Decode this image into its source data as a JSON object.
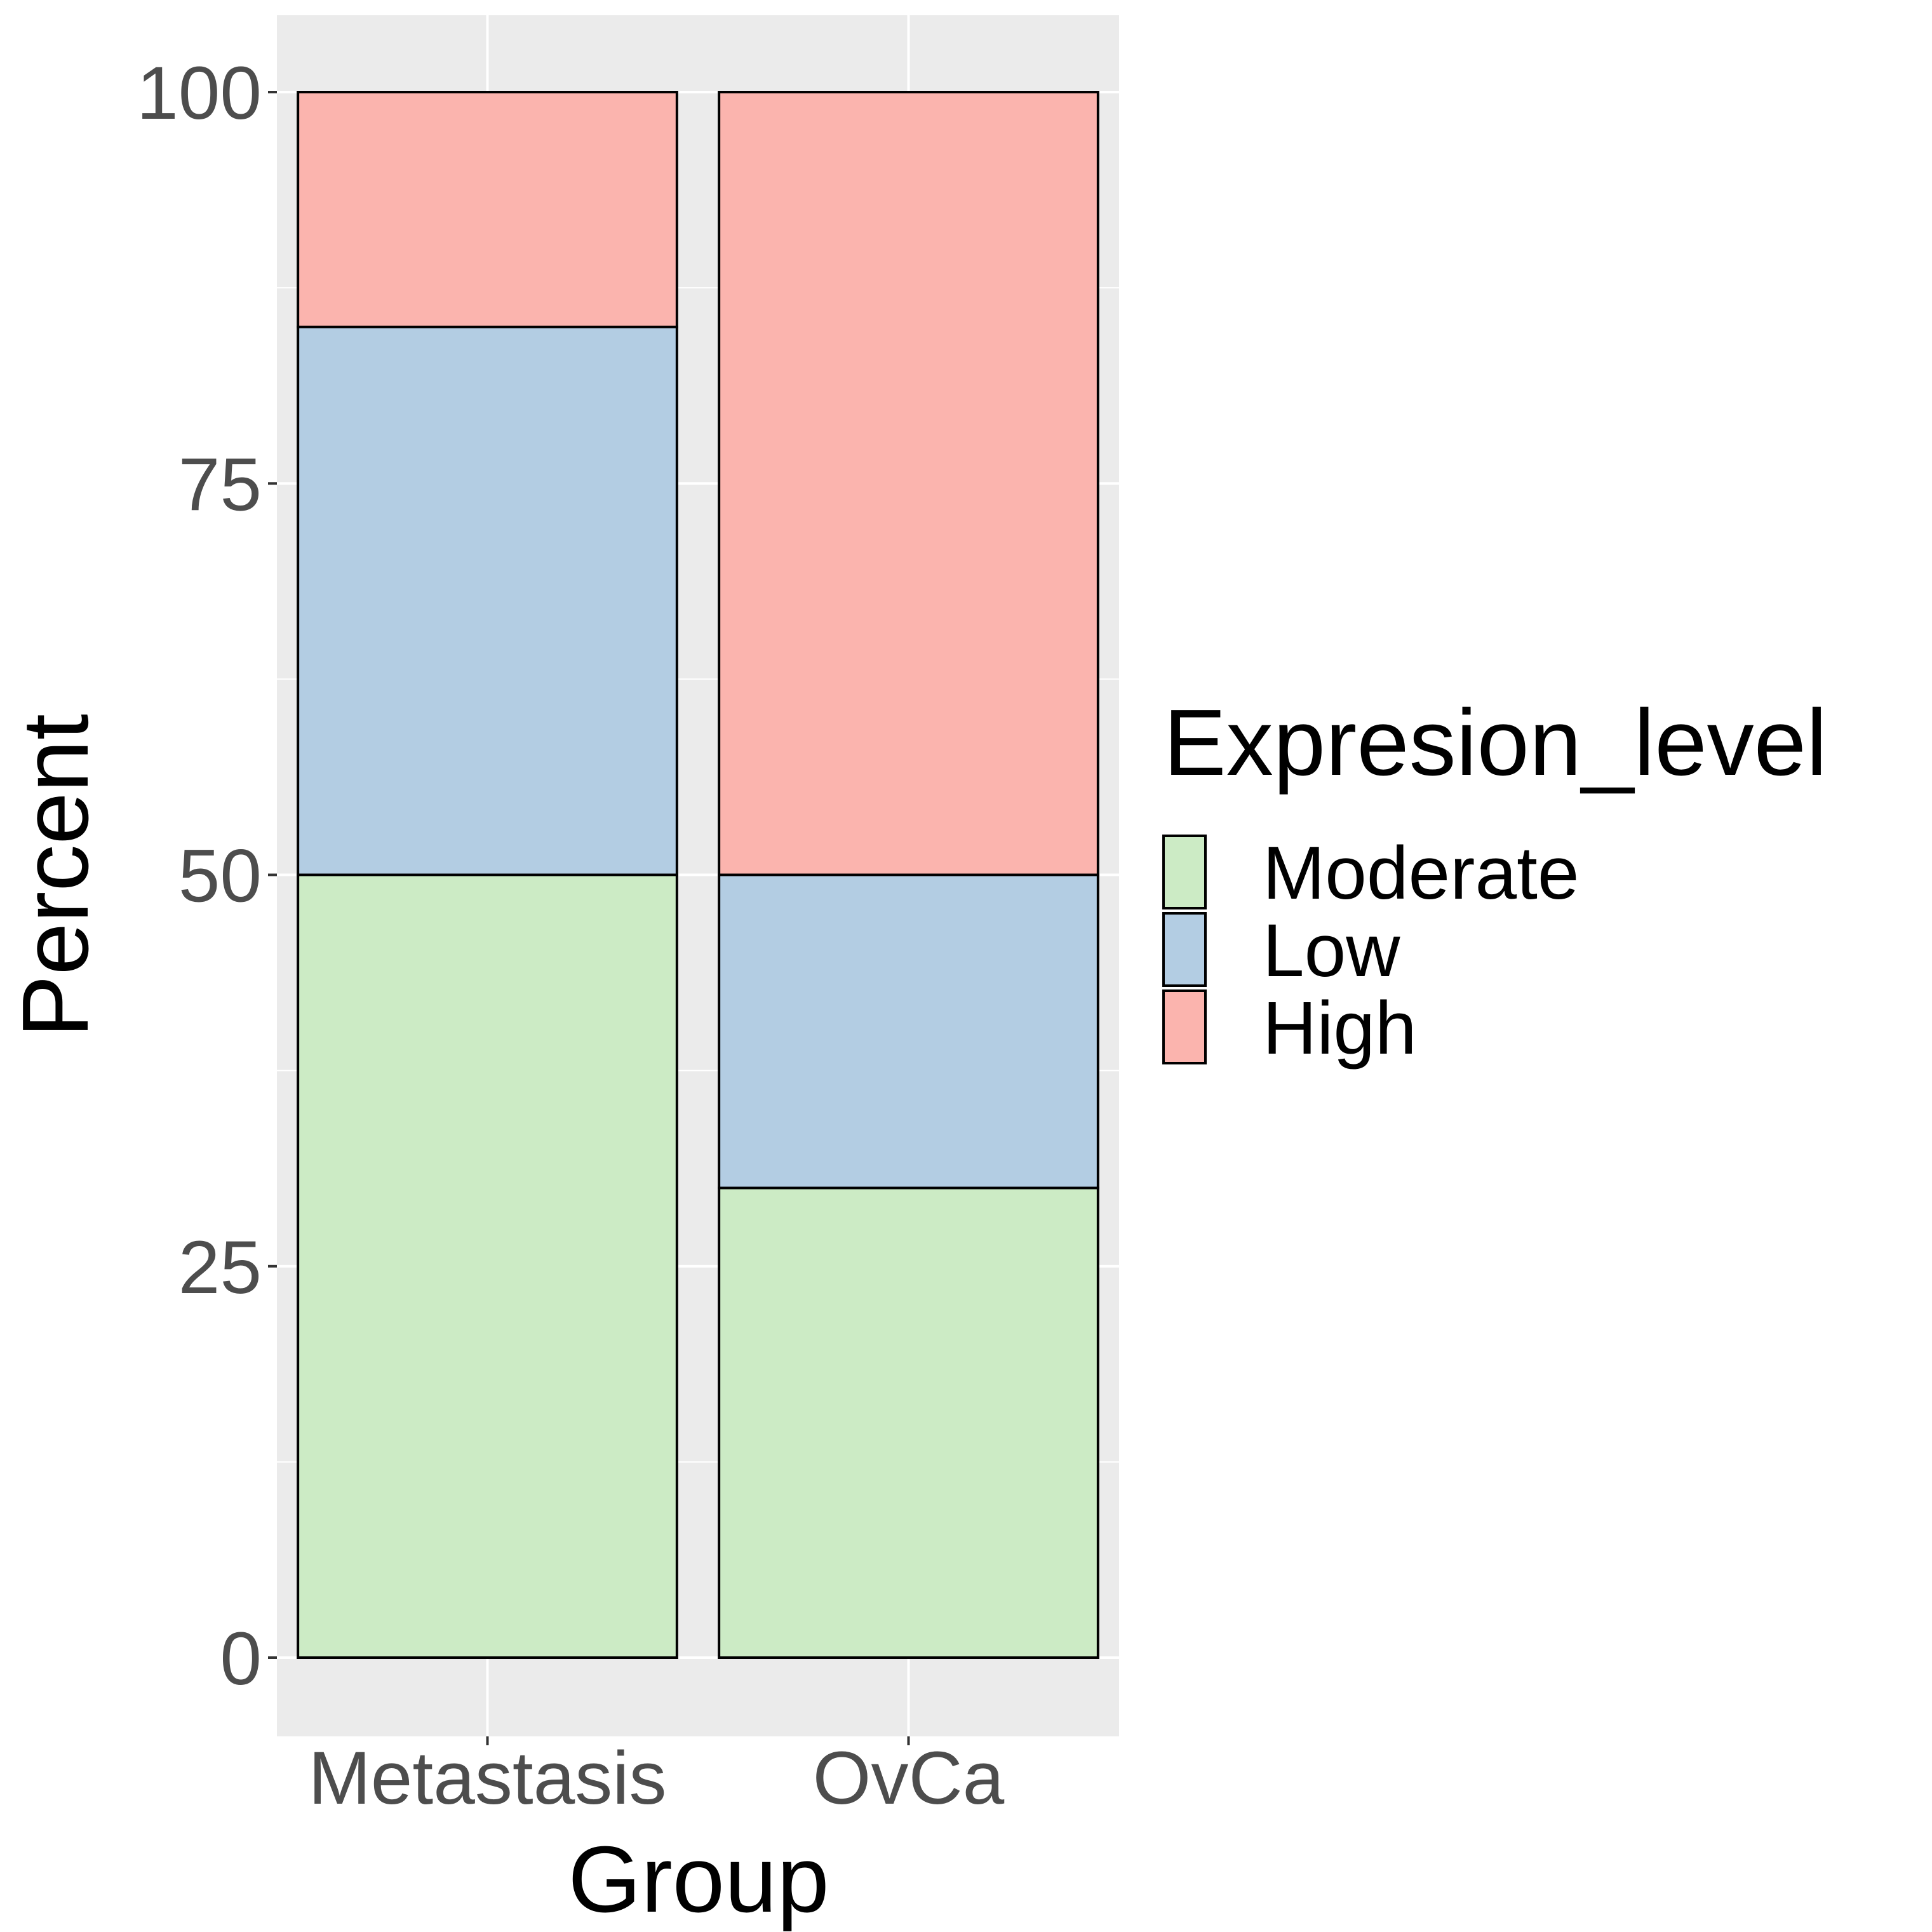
{
  "chart_data": {
    "type": "bar",
    "stacked": true,
    "title": "",
    "xlabel": "Group",
    "ylabel": "Percent",
    "categories": [
      "Metastasis",
      "OvCa"
    ],
    "series": [
      {
        "name": "Moderate",
        "color": "#ccebc5",
        "values": [
          50,
          30
        ]
      },
      {
        "name": "Low",
        "color": "#b3cde3",
        "values": [
          35,
          20
        ]
      },
      {
        "name": "High",
        "color": "#fbb4ae",
        "values": [
          15,
          50
        ]
      }
    ],
    "ylim": [
      -5,
      105
    ],
    "yticks": [
      0,
      25,
      50,
      75,
      100
    ],
    "ytick_labels": [
      "0",
      "25",
      "50",
      "75",
      "100"
    ],
    "grid": true,
    "panel_background": "#ebebeb",
    "legend": {
      "title": "Expresion_level",
      "position": "right",
      "entries": [
        "Moderate",
        "Low",
        "High"
      ]
    }
  }
}
